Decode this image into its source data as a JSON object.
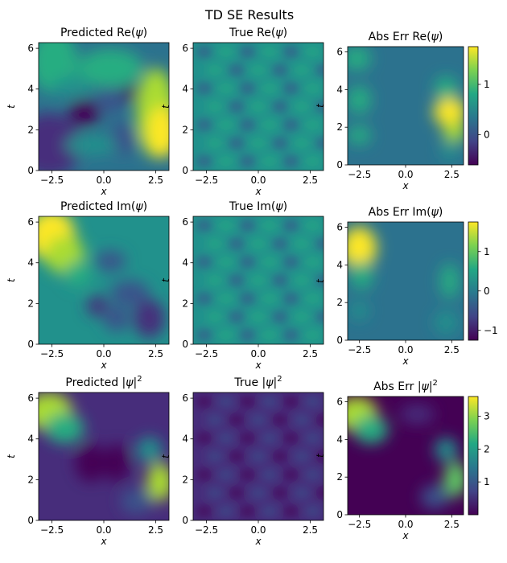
{
  "suptitle": "TD SE Results",
  "chart_data": {
    "type": "heatmap",
    "title": "TD SE Results",
    "colormap": "viridis",
    "colorbar_colors": [
      "#440154",
      "#414487",
      "#2a788e",
      "#22a884",
      "#7ad151",
      "#fde725"
    ],
    "panels": [
      {
        "id": "pred-re",
        "title_main": "Predicted Re(",
        "title_sym": "ψ",
        "title_tail": ")",
        "title_sup": "",
        "xlabel": "x",
        "ylabel": "t",
        "xlim": [
          -3.14,
          3.14
        ],
        "ylim": [
          0,
          6.28
        ],
        "xticks": [
          -2.5,
          0.0,
          2.5
        ],
        "xticklabels": [
          "−2.5",
          "0.0",
          "2.5"
        ],
        "yticks": [
          0,
          2,
          4,
          6
        ],
        "yticklabels": [
          "0",
          "2",
          "4",
          "6"
        ],
        "colorbar": false
      },
      {
        "id": "true-re",
        "title_main": "True Re(",
        "title_sym": "ψ",
        "title_tail": ")",
        "title_sup": "",
        "xlabel": "x",
        "ylabel": "t",
        "xlim": [
          -3.14,
          3.14
        ],
        "ylim": [
          0,
          6.28
        ],
        "xticks": [
          -2.5,
          0.0,
          2.5
        ],
        "xticklabels": [
          "−2.5",
          "0.0",
          "2.5"
        ],
        "yticks": [
          0,
          2,
          4,
          6
        ],
        "yticklabels": [
          "0",
          "2",
          "4",
          "6"
        ],
        "colorbar": false
      },
      {
        "id": "err-re",
        "title_main": "Abs Err Re(",
        "title_sym": "ψ",
        "title_tail": ")",
        "title_sup": "",
        "xlabel": "x",
        "ylabel": "t",
        "xlim": [
          -3.14,
          3.14
        ],
        "ylim": [
          0,
          6.28
        ],
        "xticks": [
          -2.5,
          0.0,
          2.5
        ],
        "xticklabels": [
          "−2.5",
          "0.0",
          "2.5"
        ],
        "yticks": [
          0,
          2,
          4,
          6
        ],
        "yticklabels": [
          "0",
          "2",
          "4",
          "6"
        ],
        "colorbar": true,
        "cbar_range": [
          -0.6,
          1.75
        ],
        "cbar_ticks": [
          0,
          1
        ],
        "cbar_ticklabels": [
          "0",
          "1"
        ]
      },
      {
        "id": "pred-im",
        "title_main": "Predicted Im(",
        "title_sym": "ψ",
        "title_tail": ")",
        "title_sup": "",
        "xlabel": "x",
        "ylabel": "t",
        "xlim": [
          -3.14,
          3.14
        ],
        "ylim": [
          0,
          6.28
        ],
        "xticks": [
          -2.5,
          0.0,
          2.5
        ],
        "xticklabels": [
          "−2.5",
          "0.0",
          "2.5"
        ],
        "yticks": [
          0,
          2,
          4,
          6
        ],
        "yticklabels": [
          "0",
          "2",
          "4",
          "6"
        ],
        "colorbar": false
      },
      {
        "id": "true-im",
        "title_main": "True Im(",
        "title_sym": "ψ",
        "title_tail": ")",
        "title_sup": "",
        "xlabel": "x",
        "ylabel": "t",
        "xlim": [
          -3.14,
          3.14
        ],
        "ylim": [
          0,
          6.28
        ],
        "xticks": [
          -2.5,
          0.0,
          2.5
        ],
        "xticklabels": [
          "−2.5",
          "0.0",
          "2.5"
        ],
        "yticks": [
          0,
          2,
          4,
          6
        ],
        "yticklabels": [
          "0",
          "2",
          "4",
          "6"
        ],
        "colorbar": false
      },
      {
        "id": "err-im",
        "title_main": "Abs Err Im(",
        "title_sym": "ψ",
        "title_tail": ")",
        "title_sup": "",
        "xlabel": "x",
        "ylabel": "t",
        "xlim": [
          -3.14,
          3.14
        ],
        "ylim": [
          0,
          6.28
        ],
        "xticks": [
          -2.5,
          0.0,
          2.5
        ],
        "xticklabels": [
          "−2.5",
          "0.0",
          "2.5"
        ],
        "yticks": [
          0,
          2,
          4,
          6
        ],
        "yticklabels": [
          "0",
          "2",
          "4",
          "6"
        ],
        "colorbar": true,
        "cbar_range": [
          -1.25,
          1.75
        ],
        "cbar_ticks": [
          -1,
          0,
          1
        ],
        "cbar_ticklabels": [
          "−1",
          "0",
          "1"
        ]
      },
      {
        "id": "pred-abs2",
        "title_main": "Predicted |",
        "title_sym": "ψ",
        "title_tail": "|",
        "title_sup": "2",
        "xlabel": "x",
        "ylabel": "t",
        "xlim": [
          -3.14,
          3.14
        ],
        "ylim": [
          0,
          6.28
        ],
        "xticks": [
          -2.5,
          0.0,
          2.5
        ],
        "xticklabels": [
          "−2.5",
          "0.0",
          "2.5"
        ],
        "yticks": [
          0,
          2,
          4,
          6
        ],
        "yticklabels": [
          "0",
          "2",
          "4",
          "6"
        ],
        "colorbar": false
      },
      {
        "id": "true-abs2",
        "title_main": "True |",
        "title_sym": "ψ",
        "title_tail": "|",
        "title_sup": "2",
        "xlabel": "x",
        "ylabel": "t",
        "xlim": [
          -3.14,
          3.14
        ],
        "ylim": [
          0,
          6.28
        ],
        "xticks": [
          -2.5,
          0.0,
          2.5
        ],
        "xticklabels": [
          "−2.5",
          "0.0",
          "2.5"
        ],
        "yticks": [
          0,
          2,
          4,
          6
        ],
        "yticklabels": [
          "0",
          "2",
          "4",
          "6"
        ],
        "colorbar": false
      },
      {
        "id": "err-abs2",
        "title_main": "Abs Err |",
        "title_sym": "ψ",
        "title_tail": "|",
        "title_sup": "2",
        "xlabel": "x",
        "ylabel": "t",
        "xlim": [
          -3.14,
          3.14
        ],
        "ylim": [
          0,
          6.28
        ],
        "xticks": [
          -2.5,
          0.0,
          2.5
        ],
        "xticklabels": [
          "−2.5",
          "0.0",
          "2.5"
        ],
        "yticks": [
          0,
          2,
          4,
          6
        ],
        "yticklabels": [
          "0",
          "2",
          "4",
          "6"
        ],
        "colorbar": true,
        "cbar_range": [
          0.0,
          3.6
        ],
        "cbar_ticks": [
          1,
          2,
          3
        ],
        "cbar_ticklabels": [
          "1",
          "2",
          "3"
        ]
      }
    ]
  }
}
